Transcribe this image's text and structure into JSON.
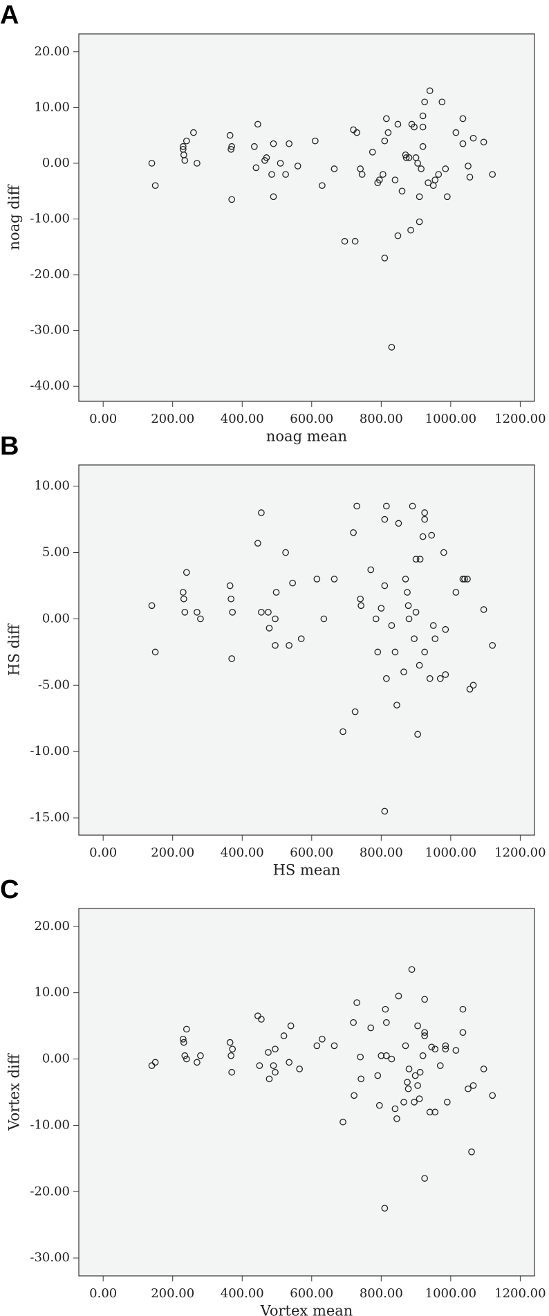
{
  "chart_data": [
    {
      "type": "scatter",
      "label": "A",
      "xlabel": "noag mean",
      "ylabel": "noag diff",
      "color": "#222222",
      "xlim": [
        -70,
        1241
      ],
      "ylim": [
        -42.7,
        23.2
      ],
      "xticks": [
        {
          "value": 0,
          "label": "0.00"
        },
        {
          "value": 200,
          "label": "200.00"
        },
        {
          "value": 400,
          "label": "400.00"
        },
        {
          "value": 600,
          "label": "600.00"
        },
        {
          "value": 800,
          "label": "800.00"
        },
        {
          "value": 1000,
          "label": "1000.00"
        },
        {
          "value": 1200,
          "label": "1200.00"
        }
      ],
      "yticks": [
        {
          "value": 20,
          "label": "20.00"
        },
        {
          "value": 10,
          "label": "10.00"
        },
        {
          "value": 0,
          "label": "0.00"
        },
        {
          "value": -10,
          "label": "-10.00"
        },
        {
          "value": -20,
          "label": "-20.00"
        },
        {
          "value": -30,
          "label": "-30.00"
        },
        {
          "value": -40,
          "label": "-40.00"
        }
      ],
      "x": [
        140,
        150,
        230,
        230,
        232,
        235,
        240,
        260,
        270,
        365,
        368,
        370,
        370,
        435,
        440,
        445,
        465,
        470,
        485,
        490,
        490,
        510,
        525,
        535,
        560,
        610,
        630,
        665,
        695,
        725,
        720,
        730,
        740,
        745,
        775,
        790,
        795,
        805,
        810,
        815,
        810,
        820,
        830,
        840,
        848,
        848,
        860,
        870,
        872,
        880,
        885,
        888,
        895,
        900,
        905,
        910,
        910,
        915,
        920,
        920,
        920,
        925,
        935,
        940,
        950,
        955,
        965,
        975,
        985,
        990,
        1015,
        1035,
        1035,
        1050,
        1055,
        1065,
        1095,
        1120
      ],
      "values": [
        0,
        -4,
        3,
        2.5,
        1.5,
        0.5,
        4,
        5.5,
        0,
        5,
        2.5,
        3,
        -6.5,
        3,
        -0.8,
        7,
        0.5,
        1,
        -2,
        3.5,
        -6,
        0,
        -2,
        3.5,
        -0.5,
        4,
        -4,
        -1,
        -14,
        -14,
        6,
        5.5,
        -1,
        -2,
        2,
        -3.5,
        -3,
        -2,
        4,
        8,
        -17,
        5.5,
        -33,
        -3,
        7,
        -13,
        -5,
        1.5,
        1,
        1,
        -12,
        7,
        6.5,
        1,
        0,
        -10.5,
        -6,
        -1,
        3,
        6.5,
        8.5,
        11,
        -3.5,
        13,
        -4,
        -3,
        -2,
        11,
        -1,
        -6,
        5.5,
        3.5,
        8,
        -0.5,
        -2.5,
        4.5,
        3.8,
        -2
      ]
    },
    {
      "type": "scatter",
      "label": "B",
      "xlabel": "HS mean",
      "ylabel": "HS diff",
      "color": "#222222",
      "xlim": [
        -70,
        1241
      ],
      "ylim": [
        -16.3,
        11.6
      ],
      "xticks": [
        {
          "value": 0,
          "label": "0.00"
        },
        {
          "value": 200,
          "label": "200.00"
        },
        {
          "value": 400,
          "label": "400.00"
        },
        {
          "value": 600,
          "label": "600.00"
        },
        {
          "value": 800,
          "label": "800.00"
        },
        {
          "value": 1000,
          "label": "1000.00"
        },
        {
          "value": 1200,
          "label": "1200.00"
        }
      ],
      "yticks": [
        {
          "value": 10,
          "label": "10.00"
        },
        {
          "value": 5,
          "label": "5.00"
        },
        {
          "value": 0,
          "label": "0.00"
        },
        {
          "value": -5,
          "label": "-5.00"
        },
        {
          "value": -10,
          "label": "-10.00"
        },
        {
          "value": -15,
          "label": "-15.00"
        }
      ],
      "x": [
        140,
        150,
        230,
        232,
        235,
        240,
        270,
        280,
        365,
        368,
        370,
        372,
        445,
        455,
        455,
        475,
        478,
        495,
        495,
        498,
        525,
        535,
        545,
        570,
        615,
        635,
        665,
        690,
        720,
        725,
        730,
        740,
        742,
        770,
        785,
        790,
        800,
        810,
        810,
        810,
        815,
        815,
        830,
        840,
        845,
        850,
        865,
        870,
        875,
        878,
        880,
        890,
        895,
        900,
        900,
        905,
        910,
        912,
        920,
        925,
        925,
        925,
        940,
        945,
        950,
        955,
        970,
        980,
        985,
        985,
        1015,
        1035,
        1040,
        1048,
        1055,
        1065,
        1095,
        1120
      ],
      "values": [
        1,
        -2.5,
        2,
        1.5,
        0.5,
        3.5,
        0.5,
        0,
        2.5,
        1.5,
        -3,
        0.5,
        5.7,
        8,
        0.5,
        0.5,
        -0.7,
        -2,
        0,
        2,
        5,
        -2,
        2.7,
        -1.5,
        3,
        0,
        3,
        -8.5,
        6.5,
        -7,
        8.5,
        1.5,
        1,
        3.7,
        0,
        -2.5,
        0.8,
        -14.5,
        2.5,
        7.5,
        -4.5,
        8.5,
        -0.5,
        -2.5,
        -6.5,
        7.2,
        -4,
        3,
        2,
        1,
        0,
        8.5,
        -1.5,
        0.5,
        4.5,
        -8.7,
        -3.5,
        4.5,
        6.2,
        7.5,
        8,
        -2.5,
        -4.5,
        6.3,
        -0.5,
        -1.5,
        -4.5,
        5,
        -0.8,
        -4.2,
        2,
        3,
        3,
        3,
        -5.3,
        -5,
        0.7,
        -2
      ]
    },
    {
      "type": "scatter",
      "label": "C",
      "xlabel": "Vortex mean",
      "ylabel": "Vortex diff",
      "color": "#222222",
      "xlim": [
        -70,
        1241
      ],
      "ylim": [
        -32.7,
        22.7
      ],
      "xticks": [
        {
          "value": 0,
          "label": "0.00"
        },
        {
          "value": 200,
          "label": "200.00"
        },
        {
          "value": 400,
          "label": "400.00"
        },
        {
          "value": 600,
          "label": "600.00"
        },
        {
          "value": 800,
          "label": "800.00"
        },
        {
          "value": 1000,
          "label": "1000.00"
        },
        {
          "value": 1200,
          "label": "1200.00"
        }
      ],
      "yticks": [
        {
          "value": 20,
          "label": "20.00"
        },
        {
          "value": 10,
          "label": "10.00"
        },
        {
          "value": 0,
          "label": "0.00"
        },
        {
          "value": -10,
          "label": "-10.00"
        },
        {
          "value": -20,
          "label": "-20.00"
        },
        {
          "value": -30,
          "label": "-30.00"
        }
      ],
      "x": [
        140,
        150,
        230,
        232,
        235,
        240,
        240,
        270,
        280,
        365,
        368,
        370,
        372,
        445,
        450,
        455,
        475,
        478,
        490,
        495,
        495,
        520,
        535,
        540,
        565,
        615,
        630,
        665,
        690,
        720,
        722,
        730,
        740,
        742,
        770,
        790,
        795,
        800,
        810,
        812,
        815,
        815,
        830,
        840,
        845,
        850,
        865,
        870,
        875,
        878,
        880,
        888,
        895,
        898,
        905,
        905,
        910,
        912,
        920,
        925,
        925,
        925,
        925,
        940,
        945,
        955,
        955,
        970,
        985,
        985,
        990,
        1015,
        1035,
        1035,
        1050,
        1060,
        1065,
        1095,
        1120
      ],
      "values": [
        -1,
        -0.5,
        3,
        2.5,
        0.5,
        0,
        4.5,
        -0.5,
        0.5,
        2.5,
        0.5,
        -2,
        1.5,
        6.5,
        -1,
        6,
        1,
        -3,
        -1,
        1.5,
        -2,
        3.5,
        -0.5,
        5,
        -1.5,
        2,
        3,
        2,
        -9.5,
        5.5,
        -5.5,
        8.5,
        0.3,
        -3,
        4.7,
        -2.5,
        -7,
        0.5,
        -22.5,
        7.5,
        5.5,
        0.5,
        0,
        -7.5,
        -9,
        9.5,
        -6.5,
        2,
        -3.5,
        -4.5,
        -1.5,
        13.5,
        -6.5,
        -2.5,
        -4,
        5,
        -6,
        -2,
        0.5,
        9,
        3.5,
        4,
        -18,
        -8,
        1.8,
        -8,
        1.5,
        -1,
        2,
        1.5,
        -6.5,
        1.3,
        7.5,
        4,
        -4.5,
        -14,
        -4,
        -1.5,
        -5.5
      ]
    }
  ]
}
